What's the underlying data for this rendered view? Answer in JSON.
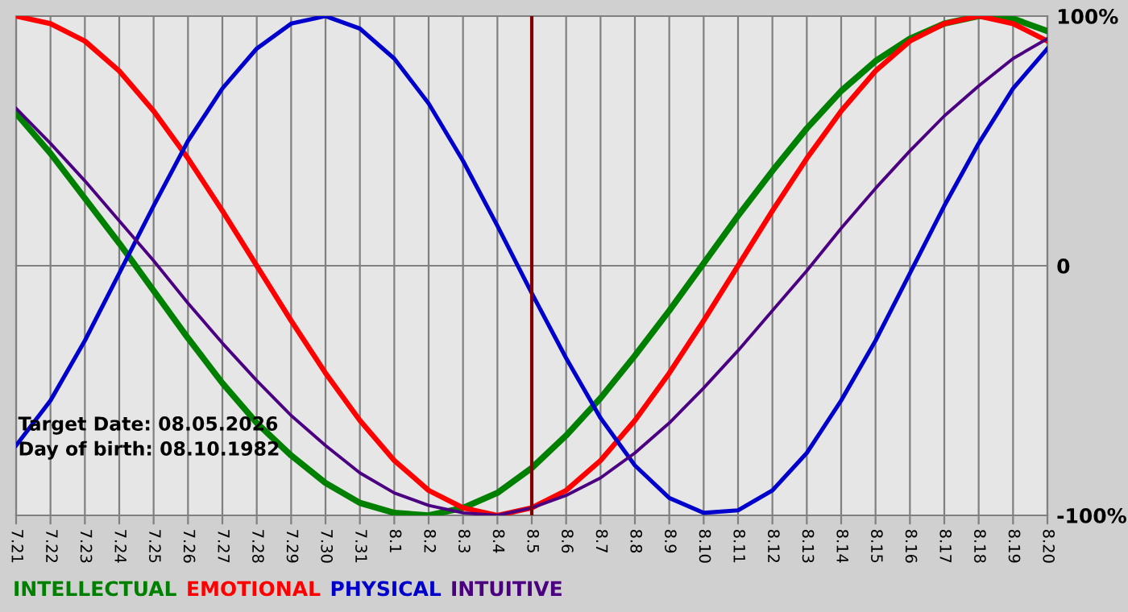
{
  "chart_data": {
    "type": "line",
    "categories": [
      "7.21",
      "7.22",
      "7.23",
      "7.24",
      "7.25",
      "7.26",
      "7.27",
      "7.28",
      "7.29",
      "7.30",
      "7.31",
      "8.1",
      "8.2",
      "8.3",
      "8.4",
      "8.5",
      "8.6",
      "8.7",
      "8.8",
      "8.9",
      "8.10",
      "8.11",
      "8.12",
      "8.13",
      "8.14",
      "8.15",
      "8.16",
      "8.17",
      "8.18",
      "8.19",
      "8.20"
    ],
    "series": [
      {
        "name": "INTELLECTUAL",
        "color": "#008000",
        "values": [
          61,
          45,
          27,
          9,
          -10,
          -29,
          -47,
          -63,
          -76,
          -87,
          -95,
          -99,
          -100,
          -97,
          -91,
          -81,
          -68,
          -53,
          -36,
          -18,
          1,
          20,
          38,
          55,
          70,
          82,
          91,
          97,
          100,
          99,
          94
        ]
      },
      {
        "name": "EMOTIONAL",
        "color": "#ff0000",
        "values": [
          100,
          97,
          90,
          78,
          62,
          43,
          22,
          0,
          -22,
          -43,
          -62,
          -78,
          -90,
          -97,
          -100,
          -97,
          -90,
          -78,
          -62,
          -43,
          -22,
          0,
          22,
          43,
          62,
          78,
          90,
          97,
          100,
          97,
          90
        ]
      },
      {
        "name": "PHYSICAL",
        "color": "#0000cc",
        "values": [
          -72,
          -54,
          -30,
          -3,
          24,
          50,
          71,
          87,
          97,
          100,
          95,
          83,
          65,
          42,
          16,
          -11,
          -37,
          -61,
          -80,
          -93,
          -99,
          -98,
          -90,
          -75,
          -54,
          -30,
          -3,
          24,
          49,
          71,
          87
        ]
      },
      {
        "name": "INTUITIVE",
        "color": "#4b0082",
        "values": [
          63,
          49,
          34,
          18,
          2,
          -15,
          -31,
          -46,
          -60,
          -72,
          -83,
          -91,
          -96,
          -99,
          -100,
          -97,
          -92,
          -85,
          -75,
          -63,
          -49,
          -34,
          -18,
          -2,
          15,
          31,
          46,
          60,
          72,
          83,
          91
        ]
      }
    ],
    "ylim": [
      -100,
      100
    ],
    "yticks": [
      {
        "value": 100,
        "label": "100%"
      },
      0,
      {
        "value": -100,
        "label": "-100%"
      }
    ],
    "ref_lines": [
      {
        "axis": "x",
        "value": "8.5",
        "color": "#800000"
      }
    ],
    "annotations": [
      "Target Date: 08.05.2026",
      "Day of birth: 08.10.1982"
    ],
    "grid": true,
    "marker": "none",
    "line_style": "solid"
  }
}
